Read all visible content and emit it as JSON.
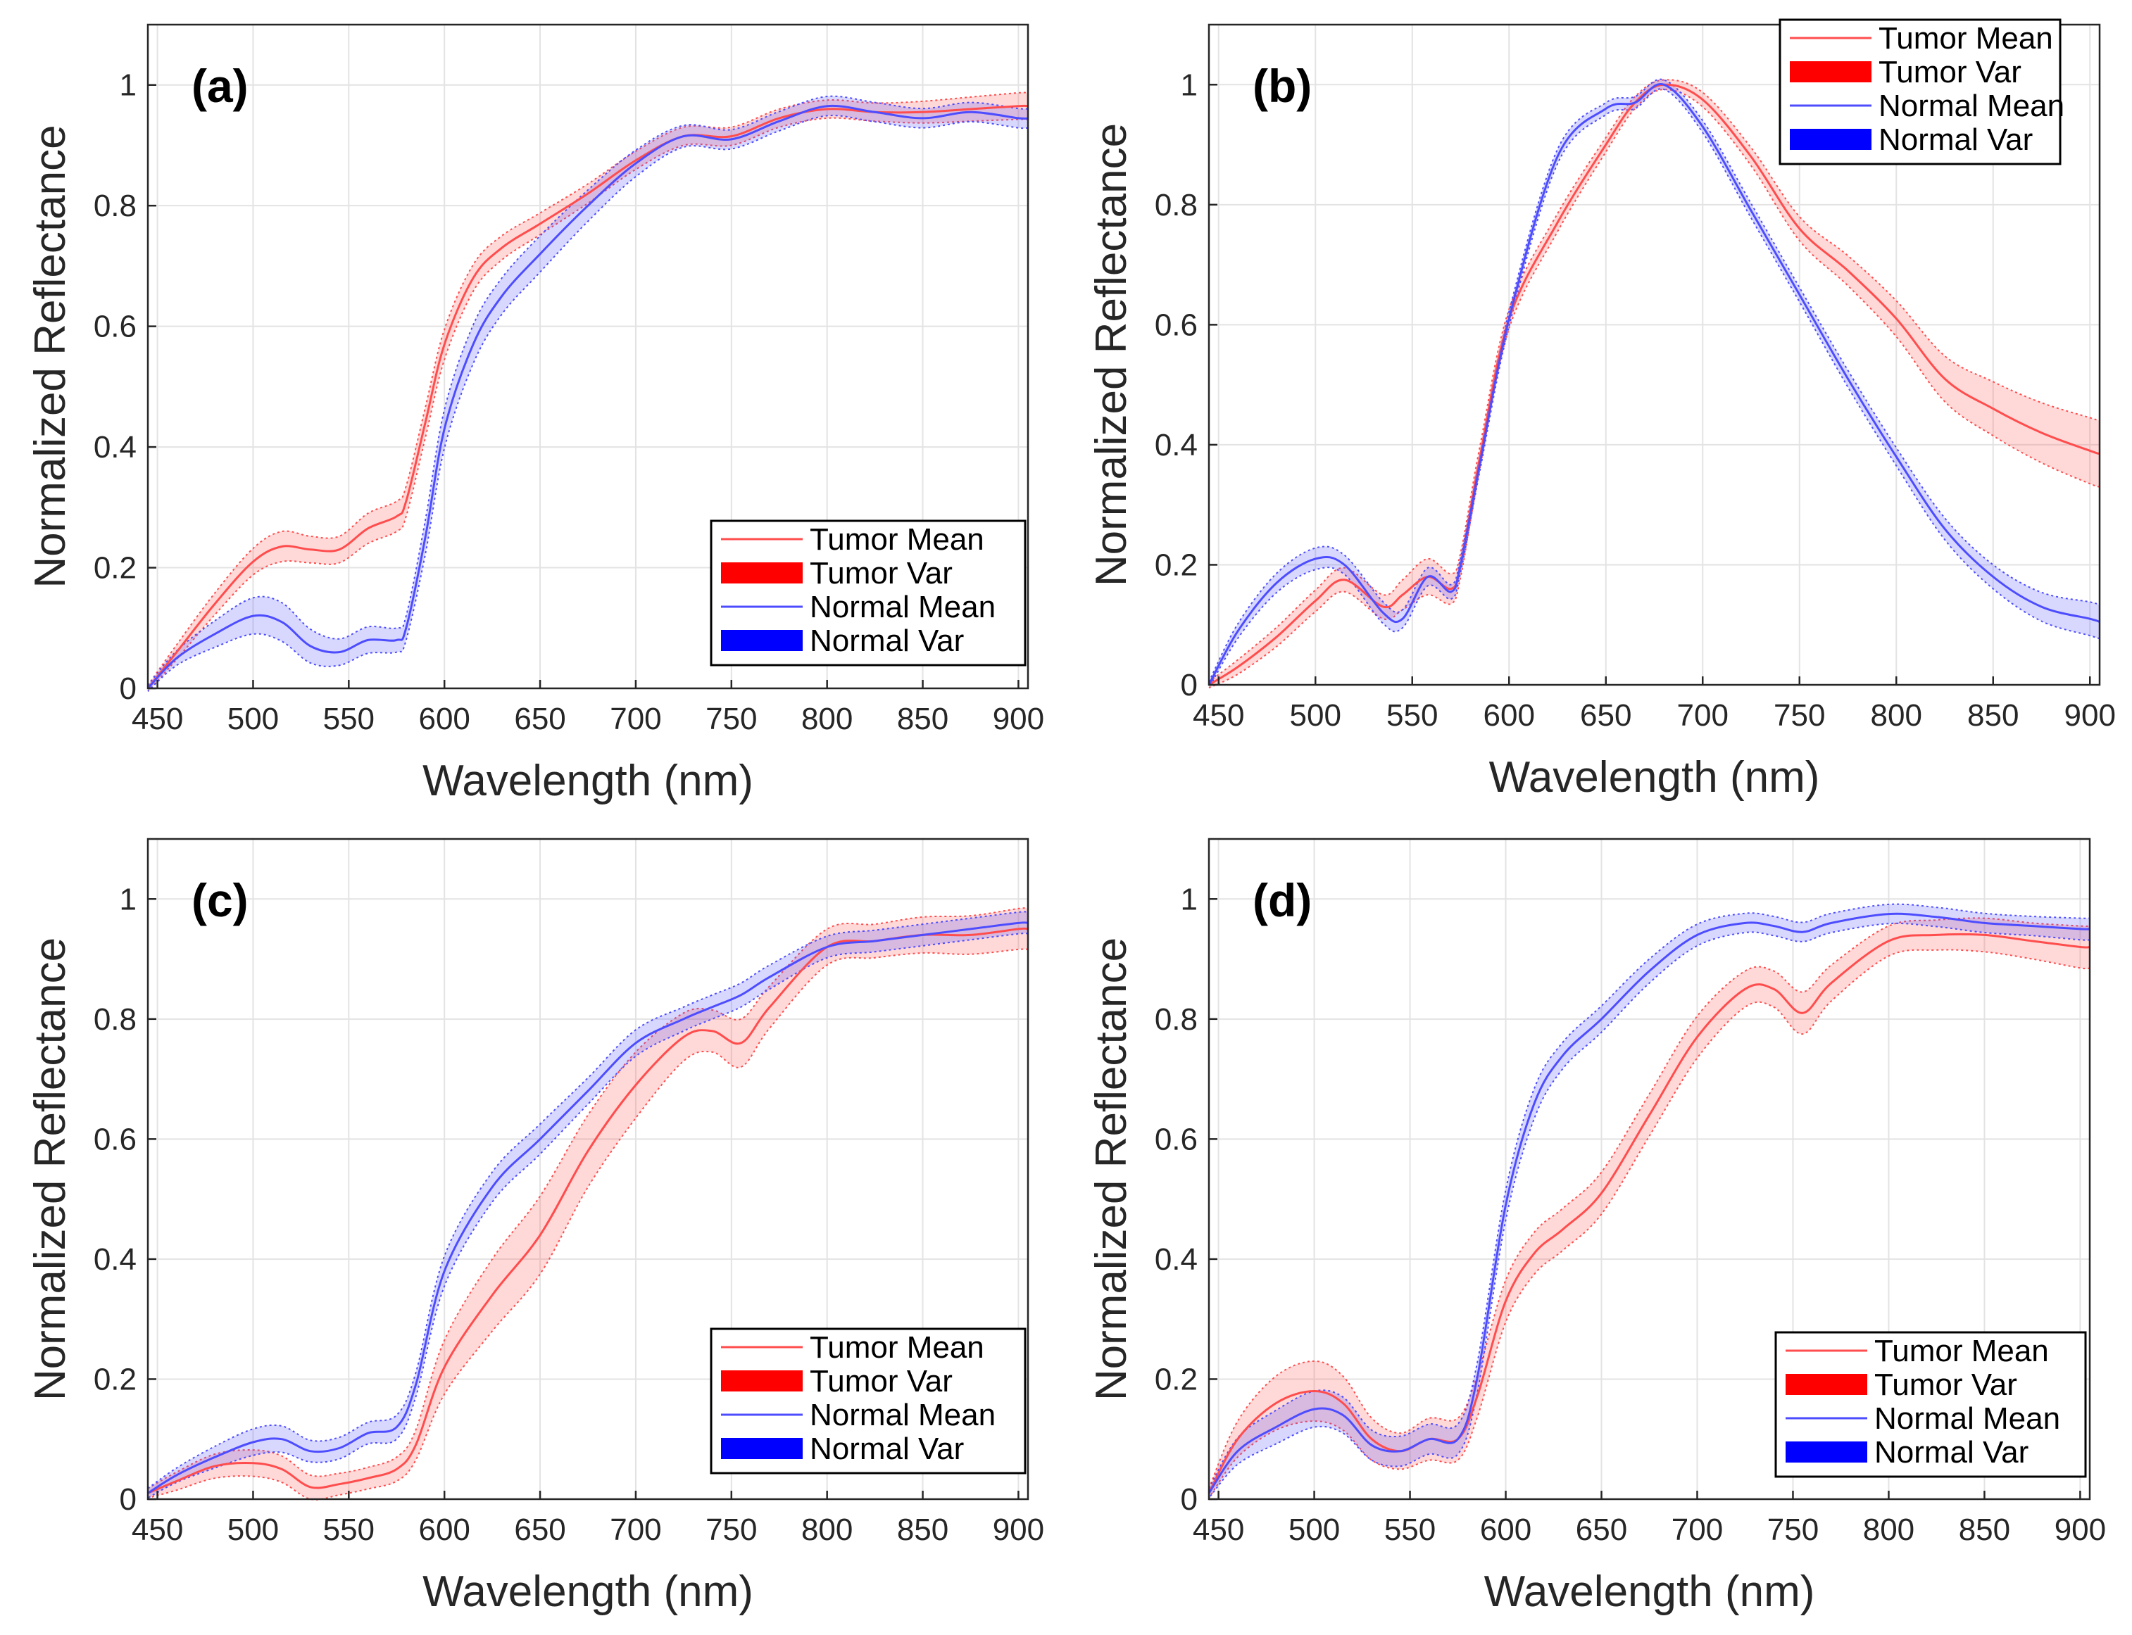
{
  "chart_data": [
    {
      "type": "line",
      "panel_label": "(a)",
      "xlabel": "Wavelength (nm)",
      "ylabel": "Normalized Reflectance",
      "xlim": [
        445,
        905
      ],
      "ylim": [
        0,
        1.1
      ],
      "xticks": [
        "450",
        "500",
        "550",
        "600",
        "650",
        "700",
        "750",
        "800",
        "850",
        "900"
      ],
      "yticks": [
        "0",
        "0.2",
        "0.4",
        "0.6",
        "0.8",
        "1"
      ],
      "legend_position": "bottom-right",
      "x": [
        445,
        460,
        480,
        500,
        515,
        530,
        545,
        560,
        575,
        580,
        590,
        600,
        615,
        630,
        650,
        675,
        700,
        725,
        750,
        775,
        800,
        825,
        850,
        875,
        900,
        905
      ],
      "series": [
        {
          "name": "Tumor Mean",
          "color": "#ff4d4d",
          "values": [
            0.0,
            0.06,
            0.14,
            0.21,
            0.235,
            0.23,
            0.23,
            0.265,
            0.285,
            0.31,
            0.44,
            0.57,
            0.68,
            0.73,
            0.77,
            0.82,
            0.875,
            0.915,
            0.915,
            0.945,
            0.96,
            0.955,
            0.955,
            0.96,
            0.965,
            0.965
          ],
          "var": [
            0.005,
            0.012,
            0.018,
            0.022,
            0.025,
            0.022,
            0.022,
            0.025,
            0.025,
            0.025,
            0.025,
            0.025,
            0.022,
            0.02,
            0.018,
            0.016,
            0.015,
            0.015,
            0.015,
            0.015,
            0.015,
            0.015,
            0.018,
            0.02,
            0.022,
            0.022
          ]
        },
        {
          "name": "Normal Mean",
          "color": "#4d4dff",
          "values": [
            0.0,
            0.05,
            0.09,
            0.12,
            0.11,
            0.07,
            0.06,
            0.08,
            0.08,
            0.1,
            0.25,
            0.43,
            0.57,
            0.65,
            0.72,
            0.8,
            0.87,
            0.915,
            0.91,
            0.94,
            0.965,
            0.955,
            0.945,
            0.955,
            0.945,
            0.945
          ],
          "var": [
            0.005,
            0.012,
            0.022,
            0.03,
            0.032,
            0.028,
            0.022,
            0.022,
            0.02,
            0.02,
            0.028,
            0.032,
            0.032,
            0.03,
            0.03,
            0.026,
            0.022,
            0.018,
            0.016,
            0.016,
            0.016,
            0.016,
            0.016,
            0.016,
            0.016,
            0.016
          ]
        }
      ],
      "legend": [
        "Tumor Mean",
        "Tumor Var",
        "Normal Mean",
        "Normal Var"
      ]
    },
    {
      "type": "line",
      "panel_label": "(b)",
      "xlabel": "Wavelength (nm)",
      "ylabel": "Normalized Reflectance",
      "xlim": [
        445,
        905
      ],
      "ylim": [
        0,
        1.1
      ],
      "xticks": [
        "450",
        "500",
        "550",
        "600",
        "650",
        "700",
        "750",
        "800",
        "850",
        "900"
      ],
      "yticks": [
        "0",
        "0.2",
        "0.4",
        "0.6",
        "0.8",
        "1"
      ],
      "legend_position": "top-right",
      "x": [
        445,
        460,
        480,
        500,
        515,
        535,
        545,
        558,
        570,
        575,
        585,
        600,
        625,
        650,
        665,
        680,
        700,
        725,
        750,
        775,
        800,
        825,
        850,
        875,
        900,
        905
      ],
      "series": [
        {
          "name": "Tumor Mean",
          "color": "#ff4d4d",
          "values": [
            0.0,
            0.03,
            0.08,
            0.14,
            0.175,
            0.13,
            0.15,
            0.18,
            0.16,
            0.2,
            0.38,
            0.61,
            0.77,
            0.9,
            0.97,
            1.0,
            0.975,
            0.88,
            0.76,
            0.69,
            0.61,
            0.51,
            0.46,
            0.42,
            0.39,
            0.385
          ],
          "var": [
            0.005,
            0.012,
            0.016,
            0.018,
            0.02,
            0.02,
            0.025,
            0.03,
            0.025,
            0.02,
            0.018,
            0.016,
            0.015,
            0.012,
            0.01,
            0.008,
            0.012,
            0.015,
            0.02,
            0.025,
            0.03,
            0.038,
            0.045,
            0.05,
            0.055,
            0.055
          ]
        },
        {
          "name": "Normal Mean",
          "color": "#4d4dff",
          "values": [
            0.0,
            0.09,
            0.17,
            0.21,
            0.2,
            0.12,
            0.11,
            0.18,
            0.155,
            0.2,
            0.37,
            0.61,
            0.88,
            0.96,
            0.97,
            1.0,
            0.93,
            0.79,
            0.65,
            0.51,
            0.38,
            0.26,
            0.18,
            0.13,
            0.11,
            0.105
          ],
          "var": [
            0.005,
            0.012,
            0.016,
            0.018,
            0.016,
            0.018,
            0.015,
            0.015,
            0.012,
            0.012,
            0.012,
            0.012,
            0.012,
            0.01,
            0.01,
            0.008,
            0.01,
            0.012,
            0.012,
            0.014,
            0.015,
            0.018,
            0.02,
            0.024,
            0.028,
            0.028
          ]
        }
      ],
      "legend": [
        "Tumor Mean",
        "Tumor Var",
        "Normal Mean",
        "Normal Var"
      ]
    },
    {
      "type": "line",
      "panel_label": "(c)",
      "xlabel": "Wavelength (nm)",
      "ylabel": "Normalized Reflectance",
      "xlim": [
        445,
        905
      ],
      "ylim": [
        0,
        1.1
      ],
      "xticks": [
        "450",
        "500",
        "550",
        "600",
        "650",
        "700",
        "750",
        "800",
        "850",
        "900"
      ],
      "yticks": [
        "0",
        "0.2",
        "0.4",
        "0.6",
        "0.8",
        "1"
      ],
      "legend_position": "bottom-right",
      "x": [
        445,
        460,
        480,
        500,
        515,
        530,
        545,
        560,
        575,
        585,
        600,
        625,
        650,
        675,
        700,
        725,
        740,
        755,
        770,
        800,
        825,
        850,
        875,
        900,
        905
      ],
      "series": [
        {
          "name": "Tumor Mean",
          "color": "#ff4d4d",
          "values": [
            0.01,
            0.03,
            0.055,
            0.06,
            0.05,
            0.02,
            0.025,
            0.035,
            0.05,
            0.09,
            0.22,
            0.34,
            0.44,
            0.58,
            0.69,
            0.77,
            0.78,
            0.76,
            0.82,
            0.92,
            0.93,
            0.94,
            0.94,
            0.95,
            0.95
          ],
          "var": [
            0.008,
            0.015,
            0.02,
            0.022,
            0.022,
            0.02,
            0.018,
            0.018,
            0.02,
            0.025,
            0.045,
            0.06,
            0.065,
            0.06,
            0.055,
            0.04,
            0.035,
            0.04,
            0.035,
            0.03,
            0.028,
            0.03,
            0.032,
            0.034,
            0.034
          ]
        },
        {
          "name": "Normal Mean",
          "color": "#4d4dff",
          "values": [
            0.01,
            0.04,
            0.07,
            0.095,
            0.1,
            0.08,
            0.085,
            0.11,
            0.12,
            0.19,
            0.38,
            0.52,
            0.6,
            0.68,
            0.76,
            0.8,
            0.82,
            0.84,
            0.87,
            0.92,
            0.93,
            0.94,
            0.95,
            0.96,
            0.96
          ],
          "var": [
            0.008,
            0.012,
            0.018,
            0.022,
            0.022,
            0.018,
            0.018,
            0.018,
            0.02,
            0.02,
            0.025,
            0.025,
            0.025,
            0.022,
            0.022,
            0.02,
            0.02,
            0.02,
            0.02,
            0.018,
            0.018,
            0.018,
            0.018,
            0.018,
            0.018
          ]
        }
      ],
      "legend": [
        "Tumor Mean",
        "Tumor Var",
        "Normal Mean",
        "Normal Var"
      ]
    },
    {
      "type": "line",
      "panel_label": "(d)",
      "xlabel": "Wavelength (nm)",
      "ylabel": "Normalized Reflectance",
      "xlim": [
        445,
        905
      ],
      "ylim": [
        0,
        1.1
      ],
      "xticks": [
        "450",
        "500",
        "550",
        "600",
        "650",
        "700",
        "750",
        "800",
        "850",
        "900"
      ],
      "yticks": [
        "0",
        "0.2",
        "0.4",
        "0.6",
        "0.8",
        "1"
      ],
      "legend_position": "bottom-right",
      "x": [
        445,
        460,
        480,
        500,
        515,
        530,
        545,
        560,
        575,
        585,
        600,
        615,
        630,
        650,
        675,
        700,
        725,
        740,
        755,
        770,
        800,
        825,
        850,
        875,
        900,
        905
      ],
      "series": [
        {
          "name": "Tumor Mean",
          "color": "#ff4d4d",
          "values": [
            0.01,
            0.1,
            0.16,
            0.18,
            0.16,
            0.1,
            0.08,
            0.1,
            0.1,
            0.17,
            0.33,
            0.41,
            0.45,
            0.51,
            0.64,
            0.77,
            0.85,
            0.85,
            0.81,
            0.86,
            0.93,
            0.94,
            0.94,
            0.93,
            0.92,
            0.92
          ],
          "var": [
            0.008,
            0.03,
            0.045,
            0.05,
            0.045,
            0.035,
            0.03,
            0.035,
            0.035,
            0.035,
            0.035,
            0.035,
            0.035,
            0.035,
            0.035,
            0.035,
            0.03,
            0.03,
            0.035,
            0.03,
            0.025,
            0.025,
            0.028,
            0.03,
            0.035,
            0.035
          ]
        },
        {
          "name": "Normal Mean",
          "color": "#4d4dff",
          "values": [
            0.01,
            0.08,
            0.12,
            0.15,
            0.14,
            0.09,
            0.08,
            0.1,
            0.1,
            0.2,
            0.49,
            0.66,
            0.74,
            0.8,
            0.88,
            0.94,
            0.96,
            0.955,
            0.945,
            0.96,
            0.975,
            0.97,
            0.96,
            0.955,
            0.95,
            0.95
          ],
          "var": [
            0.008,
            0.022,
            0.028,
            0.03,
            0.03,
            0.025,
            0.025,
            0.025,
            0.025,
            0.025,
            0.025,
            0.025,
            0.022,
            0.022,
            0.02,
            0.018,
            0.016,
            0.016,
            0.016,
            0.016,
            0.016,
            0.016,
            0.016,
            0.016,
            0.018,
            0.018
          ]
        }
      ],
      "legend": [
        "Tumor Mean",
        "Tumor Var",
        "Normal Mean",
        "Normal Var"
      ]
    }
  ]
}
